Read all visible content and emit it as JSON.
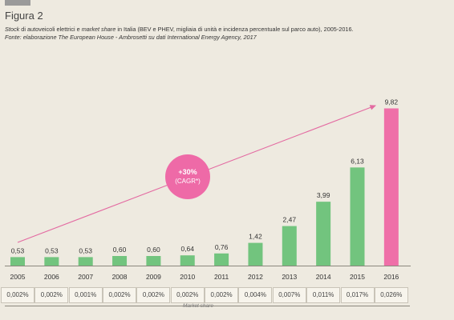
{
  "figure": {
    "label": "Figura 2",
    "subtitle_parts": [
      {
        "text": "Stock",
        "italic": true
      },
      {
        "text": " di autoveicoli elettrici e ",
        "italic": false
      },
      {
        "text": "market share",
        "italic": true
      },
      {
        "text": " in Italia (BEV e PHEV, migliaia di unità e incidenza percentuale sul parco auto), 2005-2016.",
        "italic": false
      }
    ],
    "source": "Fonte: elaborazione The European House - Ambrosetti su dati International Energy Agency, 2017"
  },
  "cagr": {
    "value": "+30%",
    "label": "(CAGR*)"
  },
  "market_share_label": "Market share",
  "colors": {
    "bar": "#72c47e",
    "highlight_bar": "#ef6fa8",
    "trend_arrow": "#e36aa1",
    "cagr_bubble": "#ee6aa7"
  },
  "chart_data": {
    "type": "bar",
    "title": "",
    "xlabel": "",
    "ylabel": "",
    "ylim": [
      0,
      10.5
    ],
    "grid": false,
    "categories": [
      "2005",
      "2006",
      "2007",
      "2008",
      "2009",
      "2010",
      "2011",
      "2012",
      "2013",
      "2014",
      "2015",
      "2016"
    ],
    "values": [
      0.53,
      0.53,
      0.53,
      0.6,
      0.6,
      0.64,
      0.76,
      1.42,
      2.47,
      3.99,
      6.13,
      9.82
    ],
    "value_labels": [
      "0,53",
      "0,53",
      "0,53",
      "0,60",
      "0,60",
      "0,64",
      "0,76",
      "1,42",
      "2,47",
      "3,99",
      "6,13",
      "9,82"
    ],
    "market_share": [
      "0,002%",
      "0,002%",
      "0,001%",
      "0,002%",
      "0,002%",
      "0,002%",
      "0,002%",
      "0,004%",
      "0,007%",
      "0,011%",
      "0,017%",
      "0,026%"
    ],
    "highlight_index": 11
  }
}
